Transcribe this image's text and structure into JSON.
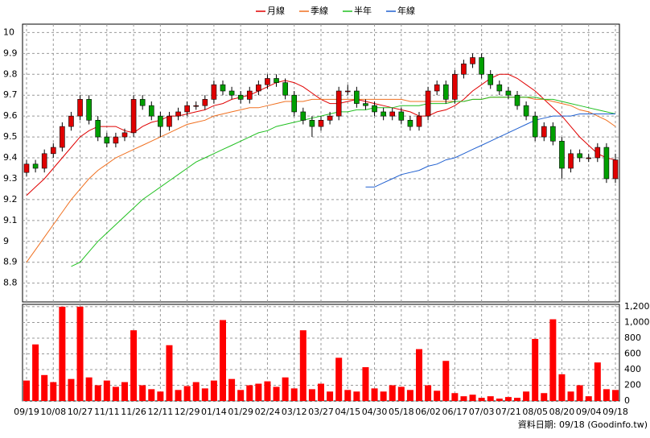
{
  "chart_data": {
    "type": "candlestick",
    "categories": [
      "09/19",
      null,
      null,
      "10/08",
      null,
      null,
      "10/27",
      null,
      null,
      "11/11",
      null,
      null,
      "11/26",
      null,
      null,
      "12/11",
      null,
      null,
      "12/29",
      null,
      null,
      "01/14",
      null,
      null,
      "01/29",
      null,
      null,
      "02/24",
      null,
      null,
      "03/12",
      null,
      null,
      "03/27",
      null,
      null,
      "04/15",
      null,
      null,
      "04/30",
      null,
      null,
      "05/18",
      null,
      null,
      "06/02",
      null,
      null,
      "06/17",
      null,
      null,
      "07/03",
      null,
      null,
      "07/21",
      null,
      null,
      "08/05",
      null,
      null,
      "08/20",
      null,
      null,
      "09/04",
      null,
      null,
      "09/18"
    ],
    "ohlc": [
      [
        9.33,
        9.39,
        9.31,
        9.37
      ],
      [
        9.37,
        9.39,
        9.33,
        9.35
      ],
      [
        9.35,
        9.44,
        9.33,
        9.42
      ],
      [
        9.42,
        9.47,
        9.4,
        9.45
      ],
      [
        9.45,
        9.57,
        9.43,
        9.55
      ],
      [
        9.55,
        9.62,
        9.53,
        9.6
      ],
      [
        9.6,
        9.7,
        9.58,
        9.68
      ],
      [
        9.68,
        9.7,
        9.56,
        9.58
      ],
      [
        9.58,
        9.6,
        9.48,
        9.5
      ],
      [
        9.5,
        9.52,
        9.45,
        9.47
      ],
      [
        9.47,
        9.52,
        9.45,
        9.5
      ],
      [
        9.5,
        9.54,
        9.48,
        9.52
      ],
      [
        9.52,
        9.7,
        9.5,
        9.68
      ],
      [
        9.68,
        9.7,
        9.63,
        9.65
      ],
      [
        9.65,
        9.67,
        9.58,
        9.6
      ],
      [
        9.6,
        9.62,
        9.5,
        9.55
      ],
      [
        9.55,
        9.62,
        9.53,
        9.6
      ],
      [
        9.6,
        9.64,
        9.58,
        9.62
      ],
      [
        9.62,
        9.67,
        9.6,
        9.65
      ],
      [
        9.65,
        9.67,
        9.63,
        9.65
      ],
      [
        9.65,
        9.7,
        9.63,
        9.68
      ],
      [
        9.68,
        9.77,
        9.66,
        9.75
      ],
      [
        9.75,
        9.77,
        9.7,
        9.72
      ],
      [
        9.72,
        9.74,
        9.68,
        9.7
      ],
      [
        9.7,
        9.72,
        9.66,
        9.68
      ],
      [
        9.68,
        9.74,
        9.66,
        9.72
      ],
      [
        9.72,
        9.77,
        9.7,
        9.75
      ],
      [
        9.75,
        9.8,
        9.73,
        9.78
      ],
      [
        9.78,
        9.8,
        9.74,
        9.76
      ],
      [
        9.76,
        9.78,
        9.68,
        9.7
      ],
      [
        9.7,
        9.72,
        9.6,
        9.62
      ],
      [
        9.62,
        9.64,
        9.56,
        9.58
      ],
      [
        9.58,
        9.6,
        9.5,
        9.55
      ],
      [
        9.55,
        9.6,
        9.53,
        9.58
      ],
      [
        9.58,
        9.62,
        9.56,
        9.6
      ],
      [
        9.6,
        9.74,
        9.58,
        9.72
      ],
      [
        9.72,
        9.75,
        9.7,
        9.72
      ],
      [
        9.72,
        9.74,
        9.64,
        9.66
      ],
      [
        9.66,
        9.68,
        9.63,
        9.65
      ],
      [
        9.65,
        9.67,
        9.6,
        9.62
      ],
      [
        9.62,
        9.64,
        9.58,
        9.6
      ],
      [
        9.6,
        9.64,
        9.58,
        9.62
      ],
      [
        9.62,
        9.64,
        9.56,
        9.58
      ],
      [
        9.58,
        9.6,
        9.53,
        9.55
      ],
      [
        9.55,
        9.62,
        9.53,
        9.6
      ],
      [
        9.6,
        9.74,
        9.58,
        9.72
      ],
      [
        9.72,
        9.77,
        9.7,
        9.75
      ],
      [
        9.75,
        9.77,
        9.66,
        9.68
      ],
      [
        9.68,
        9.82,
        9.66,
        9.8
      ],
      [
        9.8,
        9.87,
        9.78,
        9.85
      ],
      [
        9.85,
        9.9,
        9.83,
        9.88
      ],
      [
        9.88,
        9.9,
        9.78,
        9.8
      ],
      [
        9.8,
        9.82,
        9.73,
        9.75
      ],
      [
        9.75,
        9.77,
        9.7,
        9.72
      ],
      [
        9.72,
        9.74,
        9.68,
        9.7
      ],
      [
        9.7,
        9.72,
        9.63,
        9.65
      ],
      [
        9.65,
        9.67,
        9.58,
        9.6
      ],
      [
        9.6,
        9.62,
        9.48,
        9.5
      ],
      [
        9.5,
        9.57,
        9.48,
        9.55
      ],
      [
        9.55,
        9.57,
        9.46,
        9.48
      ],
      [
        9.48,
        9.5,
        9.3,
        9.35
      ],
      [
        9.35,
        9.44,
        9.33,
        9.42
      ],
      [
        9.42,
        9.44,
        9.38,
        9.4
      ],
      [
        9.4,
        9.42,
        9.38,
        9.4
      ],
      [
        9.4,
        9.47,
        9.38,
        9.45
      ],
      [
        9.45,
        9.47,
        9.28,
        9.3
      ],
      [
        9.3,
        9.42,
        9.28,
        9.39
      ]
    ],
    "up_color": "#e00000",
    "down_color": "#00a000",
    "ylim": [
      8.71,
      10.04
    ],
    "yticks": [
      8.8,
      8.9,
      9,
      9.1,
      9.2,
      9.3,
      9.4,
      9.5,
      9.6,
      9.7,
      9.8,
      9.9,
      10
    ],
    "grid": true,
    "series": [
      {
        "name": "月線",
        "color": "#e00000",
        "values": [
          9.22,
          9.26,
          9.3,
          9.35,
          9.4,
          9.45,
          9.5,
          9.53,
          9.55,
          9.55,
          9.55,
          9.53,
          9.52,
          9.55,
          9.57,
          9.58,
          9.6,
          9.6,
          9.61,
          9.62,
          9.63,
          9.65,
          9.66,
          9.68,
          9.69,
          9.7,
          9.72,
          9.74,
          9.76,
          9.77,
          9.76,
          9.74,
          9.71,
          9.68,
          9.66,
          9.66,
          9.67,
          9.68,
          9.67,
          9.66,
          9.65,
          9.64,
          9.63,
          9.62,
          9.6,
          9.6,
          9.62,
          9.63,
          9.65,
          9.68,
          9.72,
          9.75,
          9.78,
          9.8,
          9.8,
          9.78,
          9.75,
          9.72,
          9.68,
          9.64,
          9.6,
          9.55,
          9.5,
          9.46,
          9.42,
          9.4,
          9.39
        ]
      },
      {
        "name": "季線",
        "color": "#f07020",
        "values": [
          8.9,
          8.96,
          9.02,
          9.08,
          9.14,
          9.2,
          9.25,
          9.3,
          9.34,
          9.37,
          9.4,
          9.42,
          9.44,
          9.46,
          9.48,
          9.5,
          9.52,
          9.54,
          9.56,
          9.57,
          9.58,
          9.6,
          9.61,
          9.62,
          9.63,
          9.64,
          9.64,
          9.65,
          9.66,
          9.67,
          9.67,
          9.67,
          9.68,
          9.68,
          9.68,
          9.68,
          9.68,
          9.68,
          9.68,
          9.68,
          9.68,
          9.68,
          9.68,
          9.67,
          9.67,
          9.67,
          9.67,
          9.67,
          9.67,
          9.67,
          9.68,
          9.68,
          9.69,
          9.69,
          9.69,
          9.69,
          9.69,
          9.68,
          9.68,
          9.67,
          9.66,
          9.65,
          9.63,
          9.62,
          9.6,
          9.58,
          9.55
        ]
      },
      {
        "name": "半年",
        "color": "#20c020",
        "values": [
          null,
          null,
          null,
          null,
          null,
          8.88,
          8.9,
          8.95,
          9.0,
          9.04,
          9.08,
          9.12,
          9.16,
          9.2,
          9.23,
          9.26,
          9.29,
          9.32,
          9.35,
          9.38,
          9.4,
          9.42,
          9.44,
          9.46,
          9.48,
          9.5,
          9.52,
          9.53,
          9.55,
          9.56,
          9.57,
          9.58,
          9.59,
          9.6,
          9.61,
          9.62,
          9.62,
          9.63,
          9.63,
          9.64,
          9.64,
          9.64,
          9.65,
          9.65,
          9.65,
          9.66,
          9.66,
          9.66,
          9.67,
          9.67,
          9.68,
          9.68,
          9.69,
          9.69,
          9.69,
          9.69,
          9.69,
          9.69,
          9.68,
          9.68,
          9.67,
          9.66,
          9.65,
          9.64,
          9.63,
          9.62,
          9.61
        ]
      },
      {
        "name": "年線",
        "color": "#2060d0",
        "values": [
          null,
          null,
          null,
          null,
          null,
          null,
          null,
          null,
          null,
          null,
          null,
          null,
          null,
          null,
          null,
          null,
          null,
          null,
          null,
          null,
          null,
          null,
          null,
          null,
          null,
          null,
          null,
          null,
          null,
          null,
          null,
          null,
          null,
          null,
          null,
          null,
          null,
          null,
          9.26,
          9.26,
          9.28,
          9.3,
          9.32,
          9.33,
          9.34,
          9.36,
          9.37,
          9.39,
          9.4,
          9.42,
          9.44,
          9.46,
          9.48,
          9.5,
          9.52,
          9.54,
          9.56,
          9.58,
          9.59,
          9.6,
          9.6,
          9.6,
          9.61,
          9.61,
          9.61,
          9.61,
          9.61
        ]
      }
    ],
    "volume": {
      "color": "#ff0000",
      "ylim": [
        0,
        1230
      ],
      "yticks": [
        0,
        200,
        400,
        600,
        800,
        {
          "value": 1000,
          "label": "1,000"
        },
        {
          "value": 1200,
          "label": "1,200"
        }
      ],
      "values": [
        260,
        720,
        330,
        240,
        1200,
        280,
        1200,
        300,
        200,
        260,
        180,
        240,
        900,
        200,
        150,
        120,
        710,
        140,
        190,
        240,
        160,
        260,
        1030,
        280,
        140,
        200,
        220,
        250,
        180,
        300,
        160,
        900,
        150,
        220,
        120,
        550,
        140,
        120,
        430,
        160,
        120,
        200,
        180,
        140,
        660,
        200,
        130,
        510,
        100,
        60,
        80,
        40,
        60,
        30,
        50,
        40,
        120,
        790,
        100,
        1040,
        340,
        120,
        200,
        60,
        490,
        150,
        140
      ]
    },
    "footnote": "資料日期: 09/18 (Goodinfo.tw)"
  }
}
